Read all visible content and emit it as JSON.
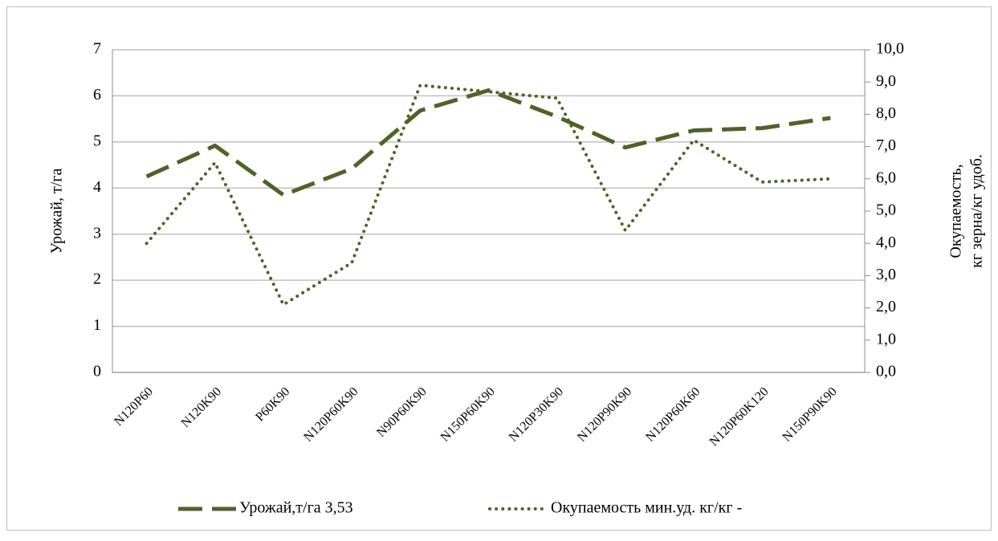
{
  "chart_data": {
    "type": "line",
    "categories": [
      "N120P60",
      "N120K90",
      "P60K90",
      "N120P60K90",
      "N90P60K90",
      "N150P60K90",
      "N120P30K90",
      "N120P90K90",
      "N120P60K60",
      "N120P60K120",
      "N150P90K90"
    ],
    "series": [
      {
        "name": "Урожай,т/га 3,53",
        "color": "#4f6228",
        "style": "dashed",
        "values": [
          4.25,
          4.92,
          3.85,
          4.42,
          5.68,
          6.12,
          5.55,
          4.88,
          5.25,
          5.3,
          5.52
        ]
      },
      {
        "name": "Окупаемость мин.уд. кг/кг -",
        "color": "#4f6228",
        "style": "dotted",
        "axis": "y2",
        "values": [
          4.0,
          6.5,
          2.1,
          3.4,
          8.9,
          8.7,
          8.5,
          4.4,
          7.2,
          5.9,
          6.0
        ]
      }
    ],
    "ylabel": "Урожай, т/га",
    "y2label": [
      "Окупаемость,",
      "кг зерна/кг удоб."
    ],
    "ylim": [
      0,
      7
    ],
    "yticks": [
      0,
      1,
      2,
      3,
      4,
      5,
      6,
      7
    ],
    "y2lim": [
      0,
      10
    ],
    "y2ticks": [
      {
        "value": 0,
        "label": "0,0"
      },
      {
        "value": 1,
        "label": "1,0"
      },
      {
        "value": 2,
        "label": "2,0"
      },
      {
        "value": 3,
        "label": "3,0"
      },
      {
        "value": 4,
        "label": "4,0"
      },
      {
        "value": 5,
        "label": "5,0"
      },
      {
        "value": 6,
        "label": "6,0"
      },
      {
        "value": 7,
        "label": "7,0"
      },
      {
        "value": 8,
        "label": "8,0"
      },
      {
        "value": 9,
        "label": "9,0"
      },
      {
        "value": 10,
        "label": "10,0"
      }
    ],
    "grid": true,
    "legend": "bottom"
  }
}
